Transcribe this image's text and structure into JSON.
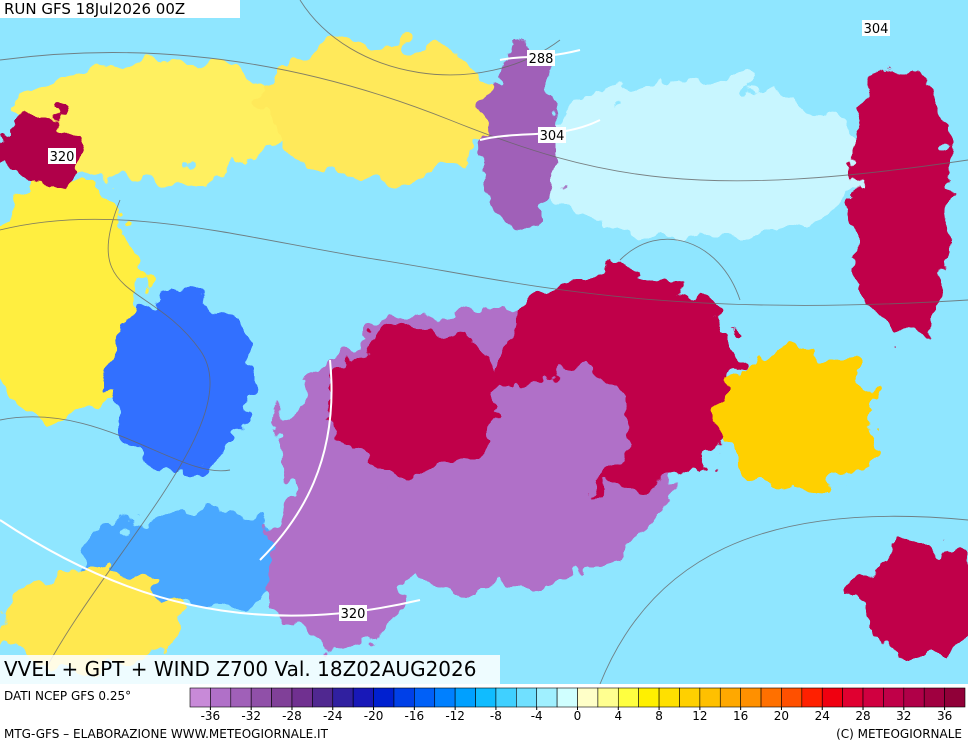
{
  "header": {
    "run": "RUN GFS 18Jul2026 00Z"
  },
  "map": {
    "title": "VVEL + GPT + WIND Z700 Val. 18Z02AUG2026",
    "contour_labels": [
      288,
      304,
      304,
      320,
      320
    ]
  },
  "colorbar": {
    "source": "DATI NCEP GFS 0.25°",
    "lim": [
      -36,
      36
    ],
    "ticks": [
      -36,
      -32,
      -28,
      -24,
      -20,
      -16,
      -12,
      -8,
      -4,
      0,
      4,
      8,
      12,
      16,
      20,
      24,
      28,
      32,
      36
    ],
    "colors": [
      "#c88ad8",
      "#b070c8",
      "#a060b8",
      "#9050a8",
      "#804098",
      "#703090",
      "#502890",
      "#3020a0",
      "#1818b8",
      "#0020d0",
      "#0040e8",
      "#0060f8",
      "#0080ff",
      "#00a0ff",
      "#10bcff",
      "#40d0ff",
      "#70e0ff",
      "#a0f0ff",
      "#d0ffff",
      "#ffffc8",
      "#ffff90",
      "#ffff40",
      "#fff000",
      "#ffe000",
      "#ffd000",
      "#ffc000",
      "#ffa800",
      "#ff9000",
      "#ff7000",
      "#ff5000",
      "#ff2000",
      "#f00010",
      "#e00030",
      "#d00040",
      "#c00048",
      "#b00048",
      "#a00040",
      "#900038"
    ]
  },
  "footer": {
    "credit": "MTG-GFS – ELABORAZIONE WWW.METEOGIORNALE.IT",
    "copyright": "(C) METEOGIORNALE"
  }
}
